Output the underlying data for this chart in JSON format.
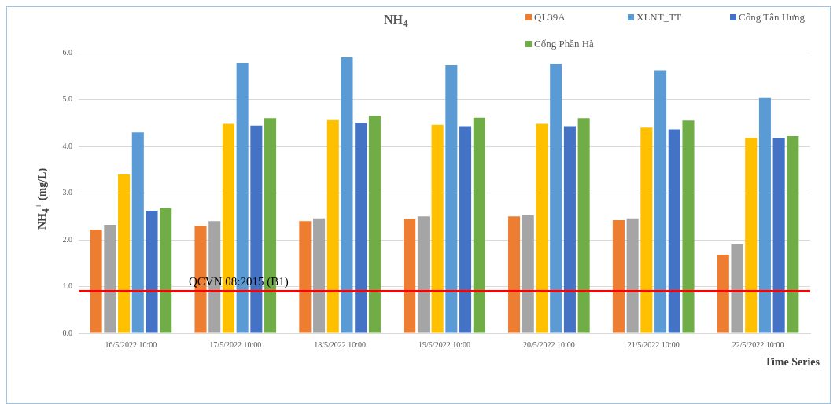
{
  "chart_data": {
    "type": "bar",
    "title": "NH$_{4}$",
    "ylabel": "NH$_{4}$$^{+}$ (mg/L)",
    "xlabel": "Time Series",
    "categories": [
      "16/5/2022 10:00",
      "17/5/2022 10:00",
      "18/5/2022 10:00",
      "19/5/2022 10:00",
      "20/5/2022 10:00",
      "21/5/2022 10:00",
      "22/5/2022 10:00"
    ],
    "series": [
      {
        "name": "QL39A",
        "color": "#ed7d31",
        "values": [
          2.22,
          2.3,
          2.4,
          2.45,
          2.5,
          2.42,
          1.68
        ]
      },
      {
        "color": "#a5a5a5",
        "values": [
          2.32,
          2.4,
          2.46,
          2.5,
          2.52,
          2.46,
          1.9
        ]
      },
      {
        "color": "#ffc000",
        "values": [
          3.4,
          4.48,
          4.56,
          4.46,
          4.48,
          4.4,
          4.18
        ]
      },
      {
        "name": "XLNT_TT",
        "color": "#5b9bd5",
        "values": [
          4.3,
          5.78,
          5.9,
          5.73,
          5.76,
          5.62,
          5.03
        ]
      },
      {
        "name": "Cống Tân Hưng",
        "color": "#4472c4",
        "values": [
          2.62,
          4.44,
          4.5,
          4.43,
          4.43,
          4.36,
          4.18
        ]
      },
      {
        "name": "Cống Phần Hà",
        "color": "#70ad47",
        "values": [
          2.68,
          4.6,
          4.65,
          4.61,
          4.6,
          4.55,
          4.22
        ]
      }
    ],
    "ylim": [
      0,
      6
    ],
    "yticks": [
      {
        "value": 0,
        "label": "0.0"
      },
      {
        "value": 1,
        "label": "1.0"
      },
      {
        "value": 2,
        "label": "2.0"
      },
      {
        "value": 3,
        "label": "3.0"
      },
      {
        "value": 4,
        "label": "4.0"
      },
      {
        "value": 5,
        "label": "5.0"
      },
      {
        "value": 6,
        "label": "6.0"
      }
    ],
    "grid": "y",
    "legend": "top right",
    "ref_lines": [
      {
        "axis": "y",
        "value": 0.9,
        "label": "QCVN 08:2015 (B1)",
        "color": "#ff0000"
      }
    ]
  }
}
